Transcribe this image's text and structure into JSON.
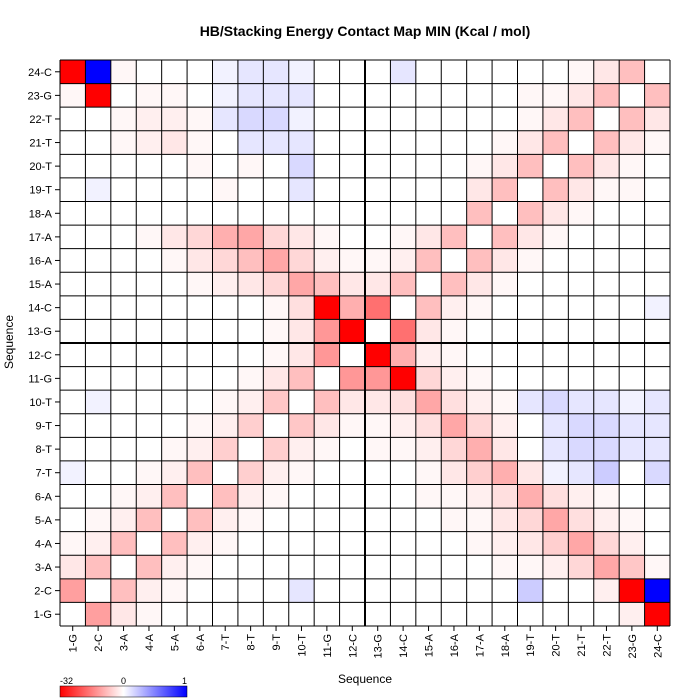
{
  "chart_data": {
    "type": "heatmap",
    "title": "HB/Stacking Energy Contact Map MIN (Kcal / mol)",
    "xlabel": "Sequence",
    "ylabel": "Sequence",
    "labels": [
      "1-G",
      "2-C",
      "3-A",
      "4-A",
      "5-A",
      "6-A",
      "7-T",
      "8-T",
      "9-T",
      "10-T",
      "11-G",
      "12-C",
      "13-G",
      "14-C",
      "15-A",
      "16-A",
      "17-A",
      "18-A",
      "19-T",
      "20-T",
      "21-T",
      "22-T",
      "23-G",
      "24-C"
    ],
    "color_scale": {
      "min": -32,
      "mid": 0,
      "max": 1,
      "min_color": "#ff0000",
      "mid_color": "#ffffff",
      "max_color": "#0000ff"
    },
    "colorbar_ticks": [
      "-32",
      "0",
      "1"
    ],
    "divider_after_index": 12,
    "values": [
      [
        0,
        -12,
        -3,
        -1,
        0,
        0,
        0,
        0,
        0,
        0,
        0,
        0,
        0,
        0,
        0,
        0,
        0,
        0,
        0,
        0,
        0,
        0,
        -2,
        -32
      ],
      [
        -12,
        0,
        -8,
        -2,
        -1,
        0,
        0,
        0,
        0,
        0.1,
        0,
        0,
        0,
        0,
        0,
        0,
        0,
        0,
        0.2,
        0,
        0,
        -2,
        -32,
        1
      ],
      [
        -3,
        -8,
        0,
        -8,
        -2,
        -1,
        0,
        0,
        0,
        0,
        0,
        0,
        0,
        0,
        0,
        0,
        0,
        -1,
        -1,
        -2,
        -5,
        -11,
        -7,
        -1
      ],
      [
        -1,
        -2,
        -8,
        0,
        -8,
        -2,
        -1,
        0,
        0,
        0,
        0,
        0,
        0,
        0,
        0,
        0,
        -1,
        -2,
        -3,
        -6,
        -11,
        -5,
        -2,
        0
      ],
      [
        0,
        -1,
        -2,
        -8,
        0,
        -8,
        -2,
        -1,
        0,
        0,
        0,
        0,
        0,
        0,
        0,
        -1,
        -1,
        -3,
        -5,
        -11,
        -4,
        -2,
        -1,
        0
      ],
      [
        0,
        0,
        -1,
        -2,
        -8,
        0,
        -8,
        -2,
        -1,
        0,
        0,
        0,
        0,
        0,
        -1,
        -1,
        -2,
        -4,
        -10,
        -4,
        -2,
        -1,
        0,
        0
      ],
      [
        0.05,
        0,
        0,
        -1,
        -2,
        -8,
        0,
        -6,
        -2,
        -1,
        0,
        0,
        0,
        0,
        -1,
        -3,
        -6,
        -10,
        -3,
        0.05,
        0.1,
        0.2,
        0,
        0.15
      ],
      [
        0,
        0,
        0,
        0,
        -1,
        -2,
        -6,
        0,
        -6,
        -2,
        -1,
        0,
        -1,
        -1,
        -2,
        -5,
        -10,
        -3,
        0,
        0.1,
        0.15,
        0.15,
        0.1,
        0.1
      ],
      [
        0,
        0,
        0,
        0,
        0,
        -1,
        -2,
        -6,
        0,
        -7,
        -3,
        -1,
        -1,
        -2,
        -4,
        -11,
        -5,
        -2,
        0,
        0.1,
        0.15,
        0.15,
        0.1,
        0.1
      ],
      [
        0,
        0.05,
        0,
        0,
        0,
        0,
        -1,
        -2,
        -7,
        0,
        -8,
        -3,
        -3,
        -4,
        -11,
        -4,
        -2,
        -1,
        0.1,
        0.15,
        0.1,
        0.1,
        0.05,
        0.1
      ],
      [
        0,
        0,
        0,
        0,
        0,
        0,
        0,
        -1,
        -3,
        -8,
        0,
        -13,
        -13,
        -32,
        -5,
        -2,
        -1,
        0,
        0,
        0,
        0,
        0,
        0,
        0
      ],
      [
        0,
        0,
        0,
        0,
        0,
        0,
        0,
        0,
        -1,
        -3,
        -13,
        0,
        -32,
        -10,
        -2,
        -1,
        0,
        0,
        0,
        0,
        0,
        0,
        0,
        0
      ],
      [
        0,
        0,
        0,
        0,
        0,
        0,
        0,
        0,
        -1,
        -3,
        -13,
        -32,
        0,
        -18,
        -3,
        -1,
        0,
        0,
        0,
        0,
        0,
        0,
        0,
        0
      ],
      [
        0,
        0,
        0,
        0,
        0,
        0,
        0,
        0,
        -1,
        -4,
        -32,
        -10,
        -18,
        0,
        -8,
        -2,
        -1,
        0,
        0,
        0,
        0,
        0,
        0,
        0.05
      ],
      [
        0,
        0,
        0,
        0,
        0,
        -1,
        -2,
        -3,
        -5,
        -11,
        -8,
        -3,
        -3,
        -8,
        0,
        -8,
        -3,
        -1,
        0,
        0,
        0,
        0,
        0,
        0
      ],
      [
        0,
        0,
        0,
        0,
        -1,
        -3,
        -5,
        -8,
        -11,
        -5,
        -2,
        -1,
        -1,
        -2,
        -8,
        0,
        -8,
        -3,
        -1,
        0,
        0,
        0,
        0,
        0
      ],
      [
        0,
        0,
        0,
        -1,
        -3,
        -5,
        -10,
        -11,
        -5,
        -3,
        -1,
        0,
        0,
        -1,
        -3,
        -8,
        0,
        -8,
        -3,
        -1,
        0,
        0,
        0,
        0
      ],
      [
        0,
        0,
        0,
        0,
        0,
        0,
        0,
        0,
        0,
        0,
        0,
        0,
        0,
        0,
        0,
        0,
        -8,
        0,
        -8,
        -3,
        -1,
        0,
        0,
        0
      ],
      [
        0,
        0.05,
        0,
        0,
        0,
        0,
        -1,
        0,
        0,
        0.1,
        0,
        0,
        0,
        0,
        0,
        0,
        -3,
        -8,
        0,
        -8,
        -3,
        -1,
        -1,
        0
      ],
      [
        0,
        0,
        0,
        0,
        0,
        -1,
        0,
        -1,
        0,
        0.15,
        0,
        0,
        0,
        0,
        0,
        0,
        -1,
        -3,
        -8,
        0,
        -8,
        -3,
        -1,
        0
      ],
      [
        0,
        0,
        -1,
        -2,
        -3,
        -1,
        0,
        0.1,
        0.1,
        0.1,
        0,
        0,
        0,
        0,
        0,
        0,
        0,
        -1,
        -3,
        -8,
        0,
        -8,
        -3,
        -1
      ],
      [
        0,
        0,
        -1,
        -2,
        -2,
        -1,
        0.1,
        0.15,
        0.15,
        0.05,
        0,
        0,
        0,
        0,
        0,
        0,
        0,
        0,
        -1,
        -3,
        -8,
        0,
        -8,
        -3
      ],
      [
        -1,
        -32,
        0,
        -1,
        -1,
        0,
        0.05,
        0.1,
        0.1,
        0.1,
        0,
        0,
        0,
        0,
        0,
        0,
        0,
        0,
        -1,
        -1,
        -3,
        -8,
        0,
        -8
      ],
      [
        -32,
        1,
        -1,
        0,
        0,
        0,
        0.05,
        0.1,
        0.1,
        0.05,
        0,
        0,
        0,
        0.1,
        0,
        0,
        0,
        0,
        0,
        0,
        -1,
        -3,
        -8,
        0
      ]
    ]
  }
}
